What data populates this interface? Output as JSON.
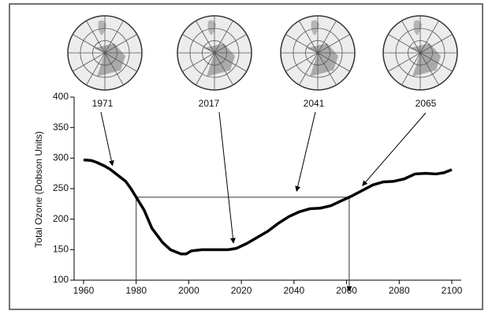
{
  "chart_data": {
    "type": "line",
    "ylabel": "Total Ozone (Dobson Units)",
    "x": [
      1960,
      1963,
      1965,
      1968,
      1970,
      1973,
      1976,
      1978,
      1980,
      1983,
      1986,
      1990,
      1993,
      1997,
      1999,
      2001,
      2005,
      2010,
      2015,
      2018,
      2022,
      2026,
      2030,
      2034,
      2038,
      2042,
      2046,
      2050,
      2054,
      2058,
      2062,
      2066,
      2070,
      2074,
      2078,
      2082,
      2086,
      2090,
      2094,
      2097,
      2100
    ],
    "series": [
      {
        "color": "#000000",
        "values": [
          297,
          296,
          293,
          287,
          282,
          272,
          262,
          250,
          236,
          215,
          185,
          162,
          150,
          143,
          143,
          148,
          150,
          150,
          150,
          152,
          160,
          170,
          180,
          193,
          204,
          212,
          217,
          218,
          222,
          230,
          238,
          247,
          256,
          261,
          262,
          266,
          274,
          275,
          274,
          276,
          281
        ]
      }
    ],
    "reference_line": {
      "y": 236,
      "x_start": 1980,
      "x_end": 2061
    },
    "annotations": [
      {
        "text": "1971",
        "x": 1971,
        "y": 280
      },
      {
        "text": "2017",
        "x": 2017,
        "y": 153
      },
      {
        "text": "2041",
        "x": 2041,
        "y": 238
      },
      {
        "text": "2065",
        "x": 2066,
        "y": 247
      }
    ],
    "xlim": [
      1960,
      2100
    ],
    "xticks": [
      1960,
      1980,
      2000,
      2020,
      2040,
      2060,
      2080,
      2100
    ],
    "ylim": [
      100,
      400
    ],
    "yticks": [
      100,
      150,
      200,
      250,
      300,
      350,
      400
    ]
  }
}
